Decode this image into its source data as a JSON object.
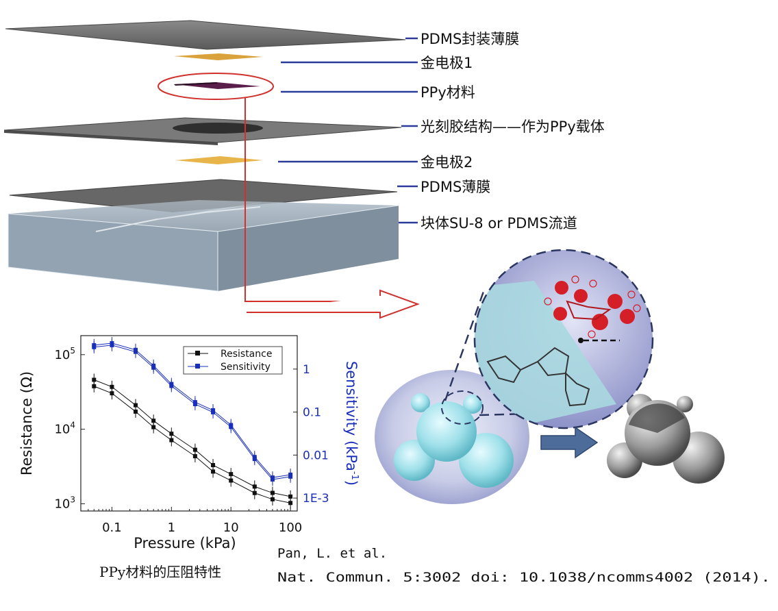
{
  "layers": [
    {
      "label": "PDMS封装薄膜"
    },
    {
      "label": "金电极1"
    },
    {
      "label": "PPy材料"
    },
    {
      "label": "光刻胶结构——作为PPy载体"
    },
    {
      "label": "金电极2"
    },
    {
      "label": "PDMS薄膜"
    },
    {
      "label": "块体SU-8 or PDMS流道"
    }
  ],
  "colors": {
    "leader": "#2b3b9a",
    "highlight": "#d0312d",
    "gold": "#e8b54a",
    "series_resistance": "#111111",
    "series_sensitivity": "#1a2fb8"
  },
  "chart_data": {
    "type": "line",
    "xlabel": "Pressure (kPa)",
    "ylabel": "Resistance (Ω)",
    "y2label": "Sensitivity (kPa",
    "y2label_sup": "-1",
    "y2label_close": ")",
    "x_scale": "log",
    "y_scale": "log",
    "y2_scale": "log",
    "xlim": [
      0.03,
      130
    ],
    "ylim": [
      800,
      180000
    ],
    "y2lim": [
      0.0005,
      6
    ],
    "x_tick_labels": [
      "0.1",
      "1",
      "10",
      "100"
    ],
    "y_tick_labels": [
      {
        "base": "10",
        "exp": "5"
      },
      {
        "base": "10",
        "exp": "4"
      },
      {
        "base": "10",
        "exp": "3"
      }
    ],
    "y2_tick_labels": [
      "1",
      "0.1",
      "0.01",
      "1E-3"
    ],
    "legend_position": "top-right",
    "series": [
      {
        "name": "Resistance",
        "axis": "left",
        "marker": "square",
        "x": [
          0.05,
          0.1,
          0.25,
          0.5,
          1,
          2.5,
          5,
          10,
          25,
          50,
          100
        ],
        "y": [
          46000,
          37000,
          21000,
          13000,
          8700,
          5300,
          3300,
          2500,
          1700,
          1400,
          1250
        ]
      },
      {
        "name": "Sensitivity",
        "axis": "right",
        "marker": "square",
        "x": [
          0.05,
          0.1,
          0.25,
          0.5,
          1,
          2.5,
          5,
          10,
          25,
          50,
          100
        ],
        "y": [
          3.6,
          4.0,
          2.8,
          1.2,
          0.45,
          0.17,
          0.11,
          0.05,
          0.009,
          0.003,
          0.0035
        ]
      }
    ]
  },
  "chart_caption": "PPy材料的压阻特性",
  "citation": {
    "line1": "Pan, L. et al.",
    "line2": "Nat. Commun. 5:3002 doi: 10.1038/ncomms4002 (2014)."
  }
}
